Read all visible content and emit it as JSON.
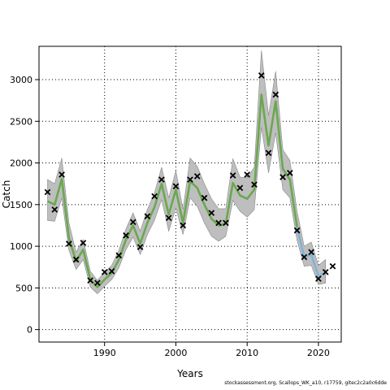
{
  "chart_data": {
    "type": "line",
    "xlabel": "Years",
    "ylabel": "Catch",
    "xlim": [
      1980.8,
      2023.2
    ],
    "ylim": [
      -150,
      3400
    ],
    "xticks": [
      1990,
      2000,
      2010,
      2020
    ],
    "yticks": [
      0,
      500,
      1000,
      1500,
      2000,
      2500,
      3000
    ],
    "grid": true,
    "colors": {
      "band": "#bebebe",
      "fit_early": "#6aa84f",
      "fit_recent": "#7fb3d5",
      "fit_center": "#4a7fb5",
      "observed": "#000000"
    },
    "observed": {
      "x": [
        1982,
        1983,
        1984,
        1985,
        1986,
        1987,
        1988,
        1989,
        1990,
        1991,
        1992,
        1993,
        1994,
        1995,
        1996,
        1997,
        1998,
        1999,
        2000,
        2001,
        2002,
        2003,
        2004,
        2005,
        2006,
        2007,
        2008,
        2009,
        2010,
        2011,
        2012,
        2013,
        2014,
        2015,
        2016,
        2017,
        2018,
        2019,
        2020,
        2021,
        2022
      ],
      "y": [
        1650,
        1440,
        1860,
        1030,
        840,
        1040,
        590,
        560,
        690,
        700,
        890,
        1130,
        1290,
        990,
        1360,
        1600,
        1800,
        1340,
        1720,
        1250,
        1800,
        1840,
        1580,
        1400,
        1280,
        1280,
        1850,
        1700,
        1860,
        1740,
        3050,
        2120,
        2820,
        1830,
        1880,
        1190,
        870,
        930,
        610,
        690,
        760
      ]
    },
    "fit": {
      "x": [
        1982,
        1983,
        1984,
        1985,
        1986,
        1987,
        1988,
        1989,
        1990,
        1991,
        1992,
        1993,
        1994,
        1995,
        1996,
        1997,
        1998,
        1999,
        2000,
        2001,
        2002,
        2003,
        2004,
        2005,
        2006,
        2007,
        2008,
        2009,
        2010,
        2011,
        2012,
        2013,
        2014,
        2015,
        2016,
        2017,
        2018,
        2019,
        2020,
        2021
      ],
      "y": [
        1540,
        1500,
        1810,
        1100,
        820,
        960,
        600,
        510,
        600,
        680,
        840,
        1080,
        1250,
        1030,
        1280,
        1470,
        1750,
        1380,
        1680,
        1280,
        1780,
        1700,
        1500,
        1330,
        1250,
        1270,
        1760,
        1610,
        1570,
        1680,
        2820,
        2210,
        2740,
        1930,
        1800,
        1230,
        870,
        900,
        640,
        680
      ],
      "lower": [
        1310,
        1300,
        1580,
        950,
        720,
        840,
        510,
        430,
        520,
        600,
        740,
        960,
        1110,
        900,
        1140,
        1310,
        1560,
        1180,
        1460,
        1140,
        1580,
        1480,
        1280,
        1120,
        1060,
        1120,
        1550,
        1420,
        1350,
        1440,
        2430,
        1880,
        2360,
        1680,
        1580,
        1070,
        760,
        770,
        540,
        560
      ],
      "upper": [
        1800,
        1750,
        2060,
        1280,
        930,
        1080,
        700,
        590,
        690,
        770,
        950,
        1210,
        1400,
        1180,
        1440,
        1640,
        1950,
        1580,
        1910,
        1440,
        2060,
        1960,
        1750,
        1570,
        1450,
        1450,
        2050,
        1830,
        1820,
        1950,
        3350,
        2570,
        3100,
        2160,
        2030,
        1420,
        1000,
        1050,
        770,
        840
      ],
      "recent_from": 2017
    }
  },
  "footer_text": "stockassessment.org, Scallops_WK_a10, r17759, gitec2c2a0c6dde"
}
